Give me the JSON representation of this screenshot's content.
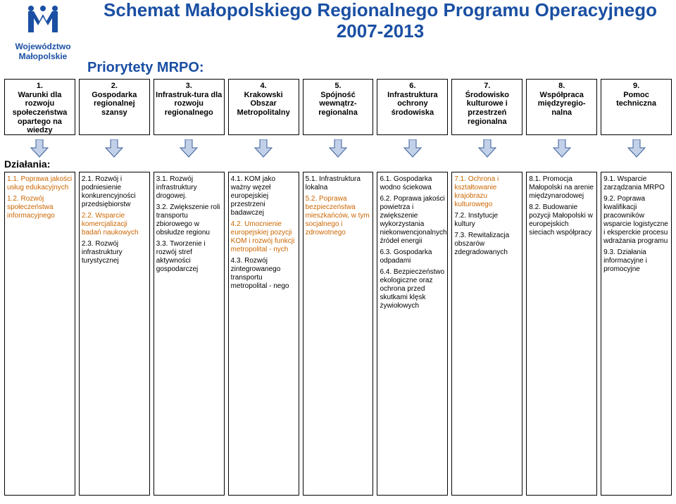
{
  "logo": {
    "label": "Województwo Małopolskie"
  },
  "title": {
    "text": "Schemat Małopolskiego Regionalnego Programu Operacyjnego 2007-2013",
    "color": "#1a4fa3",
    "fontsize": 26
  },
  "subtitle": {
    "text": "Priorytety MRPO:",
    "color": "#1a4fa3",
    "fontsize": 20
  },
  "actions_label": "Działania:",
  "colors": {
    "highlight": "#cc6600",
    "normal": "#000000",
    "border": "#000000",
    "arrow_fill": "#c2d0e8",
    "arrow_stroke": "#3a5e9b"
  },
  "priorities": [
    {
      "num": "1.",
      "label": "Warunki dla rozwoju społeczeństwa opartego na wiedzy"
    },
    {
      "num": "2.",
      "label": "Gospodarka regionalnej szansy"
    },
    {
      "num": "3.",
      "label": "Infrastruk-tura dla rozwoju regionalnego"
    },
    {
      "num": "4.",
      "label": "Krakowski Obszar Metropolitalny"
    },
    {
      "num": "5.",
      "label": "Spójność wewnątrz-regionalna"
    },
    {
      "num": "6.",
      "label": "Infrastruktura ochrony środowiska"
    },
    {
      "num": "7.",
      "label": "Środowisko kulturowe i przestrzeń regionalna"
    },
    {
      "num": "8.",
      "label": "Współpraca międzyregio-nalna"
    },
    {
      "num": "9.",
      "label": "Pomoc techniczna"
    }
  ],
  "actions": [
    [
      {
        "num": "1.1.",
        "text": "Poprawa jakości usług edukacyjnych",
        "highlight": true
      },
      {
        "num": "1.2.",
        "text": "Rozwój społeczeństwa informacyjnego",
        "highlight": true
      }
    ],
    [
      {
        "num": "2.1.",
        "text": "Rozwój i podniesienie konkurencyjności przedsiębiorstw",
        "highlight": false
      },
      {
        "num": "2.2.",
        "text": "Wsparcie komercjalizacji badań naukowych",
        "highlight": true
      },
      {
        "num": "2.3.",
        "text": "Rozwój infrastruktury turystycznej",
        "highlight": false
      }
    ],
    [
      {
        "num": "3.1.",
        "text": "Rozwój infrastruktury drogowej.",
        "highlight": false
      },
      {
        "num": "3.2.",
        "text": "Zwiększenie roli transportu zbiorowego w obsłudze regionu",
        "highlight": false
      },
      {
        "num": "3.3.",
        "text": "Tworzenie i rozwój stref aktywności gospodarczej",
        "highlight": false
      }
    ],
    [
      {
        "num": "4.1.",
        "text": "KOM jako ważny węzeł europejskiej przestrzeni badawczej",
        "highlight": false
      },
      {
        "num": "4.2.",
        "text": "Umocnienie europejskiej pozycji KOM i rozwój funkcji metropolital - nych",
        "highlight": true
      },
      {
        "num": "4.3.",
        "text": "Rozwój zintegrowanego transportu metropolital - nego",
        "highlight": false
      }
    ],
    [
      {
        "num": "5.1.",
        "text": "Infrastruktura lokalna",
        "highlight": false
      },
      {
        "num": "5.2.",
        "text": "Poprawa bezpieczeństwa mieszkańców, w tym socjalnego i zdrowotnego",
        "highlight": true
      }
    ],
    [
      {
        "num": "6.1.",
        "text": "Gospodarka wodno ściekowa",
        "highlight": false
      },
      {
        "num": "6.2.",
        "text": "Poprawa jakości powietrza i zwiększenie wykorzystania niekonwencjonalnych źródeł energii",
        "highlight": false
      },
      {
        "num": "6.3.",
        "text": "Gospodarka odpadami",
        "highlight": false
      },
      {
        "num": "6.4.",
        "text": "Bezpieczeństwo ekologiczne oraz ochrona przed skutkami klęsk żywiołowych",
        "highlight": false
      }
    ],
    [
      {
        "num": "7.1.",
        "text": "Ochrona i kształtowanie krajobrazu kulturowego",
        "highlight": true
      },
      {
        "num": "7.2.",
        "text": "Instytucje kultury",
        "highlight": false
      },
      {
        "num": "7.3.",
        "text": "Rewitalizacja obszarów zdegradowanych",
        "highlight": false
      }
    ],
    [
      {
        "num": "8.1.",
        "text": "Promocja Małopolski na arenie międzynarodowej",
        "highlight": false
      },
      {
        "num": "8.2.",
        "text": "Budowanie pozycji Małopolski w europejskich sieciach współpracy",
        "highlight": false
      }
    ],
    [
      {
        "num": "9.1.",
        "text": "Wsparcie zarządzania MRPO",
        "highlight": false
      },
      {
        "num": "9.2.",
        "text": "Poprawa kwalifikacji pracowników wsparcie logistyczne i eksperckie procesu wdrażania programu",
        "highlight": false
      },
      {
        "num": "9.3.",
        "text": "Działania informacyjne i promocyjne",
        "highlight": false
      }
    ]
  ]
}
